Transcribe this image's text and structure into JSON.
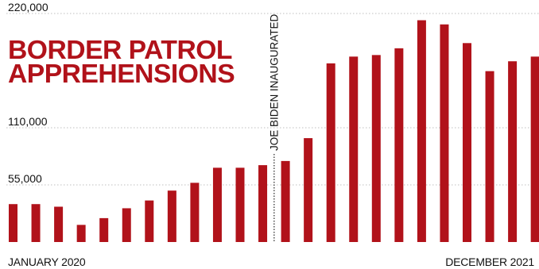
{
  "chart_data": {
    "type": "bar",
    "title_lines": [
      "BORDER PATROL",
      "APPREHENSIONS"
    ],
    "x_first_label": "JANUARY 2020",
    "x_last_label": "DECEMBER 2021",
    "y_ticks": [
      {
        "value": 220000,
        "label": "220,000"
      },
      {
        "value": 110000,
        "label": "110,000"
      },
      {
        "value": 55000,
        "label": "55,000"
      }
    ],
    "ylim": [
      0,
      220000
    ],
    "grid": true,
    "values": [
      36500,
      36500,
      34000,
      16500,
      23000,
      32500,
      40000,
      49500,
      57000,
      71500,
      71500,
      74000,
      78000,
      100000,
      172000,
      178500,
      180000,
      186500,
      213500,
      209500,
      191500,
      164500,
      174000,
      178500
    ],
    "annotation": {
      "text": "JOE BIDEN INAUGURATED",
      "after_index": 11
    },
    "colors": {
      "bar": "#b1121a",
      "title": "#b1121a",
      "grid": "#bfbfbf",
      "text": "#111111"
    }
  }
}
